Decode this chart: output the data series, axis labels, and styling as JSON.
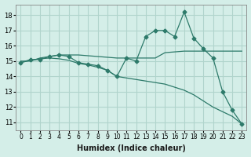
{
  "xlabel": "Humidex (Indice chaleur)",
  "ylabel": "",
  "bg_color": "#d4eee8",
  "grid_color": "#b0d4cc",
  "line_color": "#2d7a6a",
  "x": [
    0,
    1,
    2,
    3,
    4,
    5,
    6,
    7,
    8,
    9,
    10,
    11,
    12,
    13,
    14,
    15,
    16,
    17,
    18,
    19,
    20,
    21,
    22,
    23
  ],
  "line1": [
    14.9,
    15.1,
    15.1,
    15.3,
    15.4,
    15.3,
    14.9,
    14.8,
    14.7,
    14.4,
    14.0,
    15.2,
    15.0,
    16.6,
    17.0,
    17.0,
    16.6,
    18.2,
    16.5,
    15.8,
    15.2,
    13.0,
    11.8,
    10.9
  ],
  "line2": [
    15.0,
    15.0,
    15.2,
    15.3,
    15.4,
    15.4,
    15.4,
    15.35,
    15.3,
    15.25,
    15.2,
    15.2,
    15.2,
    15.2,
    15.2,
    15.55,
    15.6,
    15.65,
    15.65,
    15.65,
    15.65,
    15.65,
    15.65,
    15.65
  ],
  "line3": [
    14.9,
    15.05,
    15.15,
    15.2,
    15.15,
    15.05,
    14.85,
    14.75,
    14.6,
    14.4,
    14.0,
    13.9,
    13.8,
    13.7,
    13.6,
    13.5,
    13.3,
    13.1,
    12.8,
    12.4,
    12.0,
    11.7,
    11.4,
    10.9
  ],
  "ylim": [
    11,
    18.5
  ],
  "yticks": [
    11,
    12,
    13,
    14,
    15,
    16,
    17,
    18
  ],
  "xlim": [
    -0.5,
    23.5
  ]
}
